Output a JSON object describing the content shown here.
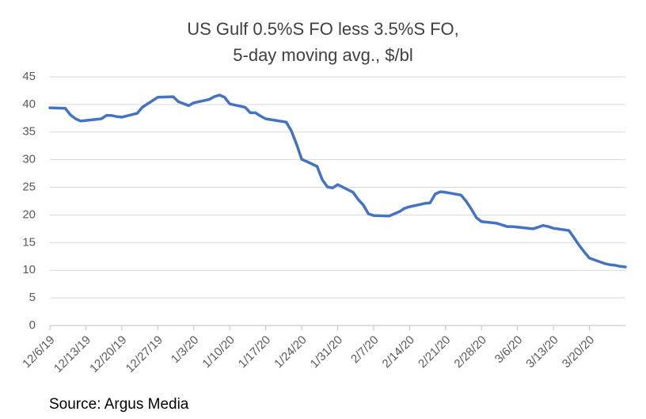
{
  "chart_data": {
    "type": "line",
    "title": [
      "US Gulf 0.5%S FO less 3.5%S FO,",
      "5-day moving avg., $/bl"
    ],
    "source": "Source: Argus Media",
    "x": [
      "12/6/19",
      "12/9/19",
      "12/10/19",
      "12/11/19",
      "12/12/19",
      "12/13/19",
      "12/16/19",
      "12/17/19",
      "12/18/19",
      "12/19/19",
      "12/20/19",
      "12/23/19",
      "12/24/19",
      "12/26/19",
      "12/27/19",
      "12/30/19",
      "12/31/19",
      "1/2/20",
      "1/3/20",
      "1/6/20",
      "1/7/20",
      "1/8/20",
      "1/9/20",
      "1/10/20",
      "1/13/20",
      "1/14/20",
      "1/15/20",
      "1/16/20",
      "1/17/20",
      "1/21/20",
      "1/22/20",
      "1/23/20",
      "1/24/20",
      "1/27/20",
      "1/28/20",
      "1/29/20",
      "1/30/20",
      "1/31/20",
      "2/3/20",
      "2/4/20",
      "2/5/20",
      "2/6/20",
      "2/7/20",
      "2/10/20",
      "2/11/20",
      "2/12/20",
      "2/13/20",
      "2/14/20",
      "2/17/20",
      "2/18/20",
      "2/19/20",
      "2/20/20",
      "2/21/20",
      "2/24/20",
      "2/25/20",
      "2/26/20",
      "2/27/20",
      "2/28/20",
      "3/2/20",
      "3/3/20",
      "3/4/20",
      "3/5/20",
      "3/6/20",
      "3/9/20",
      "3/10/20",
      "3/11/20",
      "3/12/20",
      "3/13/20",
      "3/16/20",
      "3/17/20",
      "3/18/20",
      "3/19/20",
      "3/20/20",
      "3/23/20",
      "3/24/20",
      "3/25/20",
      "3/26/20",
      "3/27/20"
    ],
    "series": [
      {
        "color": "#4472c4",
        "values": [
          39.4,
          39.3,
          38.1,
          37.4,
          37.0,
          37.1,
          37.4,
          38.0,
          38.0,
          37.8,
          37.7,
          38.4,
          39.5,
          40.7,
          41.3,
          41.4,
          40.5,
          39.8,
          40.3,
          40.9,
          41.4,
          41.7,
          41.3,
          40.1,
          39.5,
          38.5,
          38.5,
          37.9,
          37.4,
          36.8,
          35.2,
          32.8,
          30.1,
          28.8,
          26.4,
          25.1,
          24.9,
          25.5,
          24.1,
          22.8,
          21.8,
          20.2,
          19.9,
          19.8,
          20.2,
          20.6,
          21.2,
          21.5,
          22.1,
          22.2,
          23.8,
          24.2,
          24.1,
          23.6,
          22.5,
          21.1,
          19.5,
          18.8,
          18.5,
          18.2,
          17.9,
          17.9,
          17.8,
          17.5,
          17.8,
          18.1,
          17.9,
          17.6,
          17.2,
          15.9,
          14.5,
          13.3,
          12.2,
          11.2,
          11.0,
          10.9,
          10.7,
          10.6
        ]
      }
    ],
    "xlim": [
      "12/6/19",
      "3/27/20"
    ],
    "xticks": [
      "12/6/19",
      "12/13/19",
      "12/20/19",
      "12/27/19",
      "1/3/20",
      "1/10/20",
      "1/17/20",
      "1/24/20",
      "1/31/20",
      "2/7/20",
      "2/14/20",
      "2/21/20",
      "2/28/20",
      "3/6/20",
      "3/13/20",
      "3/20/20"
    ],
    "ylim": [
      0,
      45
    ],
    "yticks": [
      0,
      5,
      10,
      15,
      20,
      25,
      30,
      35,
      40,
      45
    ],
    "grid": true
  }
}
